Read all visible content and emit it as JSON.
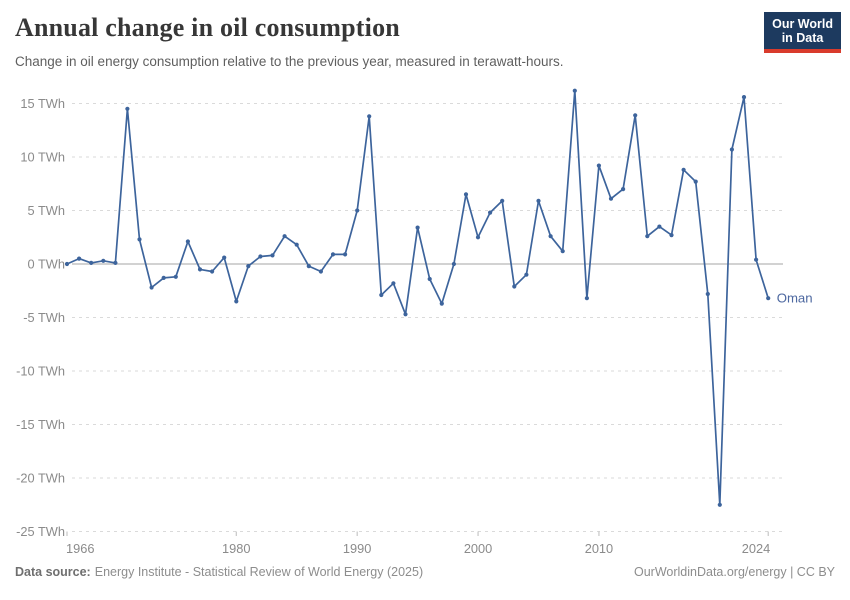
{
  "header": {
    "title": "Annual change in oil consumption",
    "subtitle": "Change in oil energy consumption relative to the previous year, measured in terawatt-hours.",
    "logo": {
      "line1": "Our World",
      "line2": "in Data"
    }
  },
  "chart_data": {
    "type": "line",
    "title": "Annual change in oil consumption",
    "unit": "TWh",
    "entity": "Oman",
    "x": [
      1966,
      1967,
      1968,
      1969,
      1970,
      1971,
      1972,
      1973,
      1974,
      1975,
      1976,
      1977,
      1978,
      1979,
      1980,
      1981,
      1982,
      1983,
      1984,
      1985,
      1986,
      1987,
      1988,
      1989,
      1990,
      1991,
      1992,
      1993,
      1994,
      1995,
      1996,
      1997,
      1998,
      1999,
      2000,
      2001,
      2002,
      2003,
      2004,
      2005,
      2006,
      2007,
      2008,
      2009,
      2010,
      2011,
      2012,
      2013,
      2014,
      2015,
      2016,
      2017,
      2018,
      2019,
      2020,
      2021,
      2022,
      2023,
      2024
    ],
    "series": [
      {
        "name": "Oman",
        "values": [
          0,
          0.5,
          0.1,
          0.3,
          0.1,
          14.5,
          2.3,
          -2.2,
          -1.3,
          -1.2,
          2.1,
          -0.5,
          -0.7,
          0.6,
          -3.5,
          -0.2,
          0.7,
          0.8,
          2.6,
          1.8,
          -0.2,
          -0.7,
          0.9,
          0.9,
          5.0,
          13.8,
          -2.9,
          -1.8,
          -4.7,
          3.4,
          -1.4,
          -3.7,
          0.0,
          6.5,
          2.5,
          4.8,
          5.9,
          -2.1,
          -1.0,
          5.9,
          2.6,
          1.2,
          16.2,
          -3.2,
          9.2,
          6.1,
          7.0,
          13.9,
          2.6,
          3.5,
          2.7,
          8.8,
          7.7,
          -2.8,
          -22.5,
          10.7,
          15.6,
          0.4,
          -3.2
        ]
      }
    ],
    "y_ticks": [
      15,
      10,
      5,
      0,
      -5,
      -10,
      -15,
      -20,
      -25
    ],
    "y_tick_suffix": " TWh",
    "x_ticks": [
      1966,
      1980,
      1990,
      2000,
      2010,
      2024
    ],
    "xlim": [
      1966,
      2024
    ],
    "ylim": [
      -25,
      15
    ],
    "grid": "dashed-horizontal",
    "legend": "end-of-line-label",
    "xlabel": "",
    "ylabel": ""
  },
  "footer": {
    "source_label": "Data source:",
    "source_text": "Energy Institute - Statistical Review of World Energy (2025)",
    "right_text": "OurWorldinData.org/energy | CC BY"
  },
  "colors": {
    "line": "#3d649c",
    "series_label": "#4d68a0",
    "grid": "#dadada",
    "zero_line": "#a5a5a5",
    "axis_text": "#8b8b8b",
    "tick": "#bbbbbb"
  }
}
